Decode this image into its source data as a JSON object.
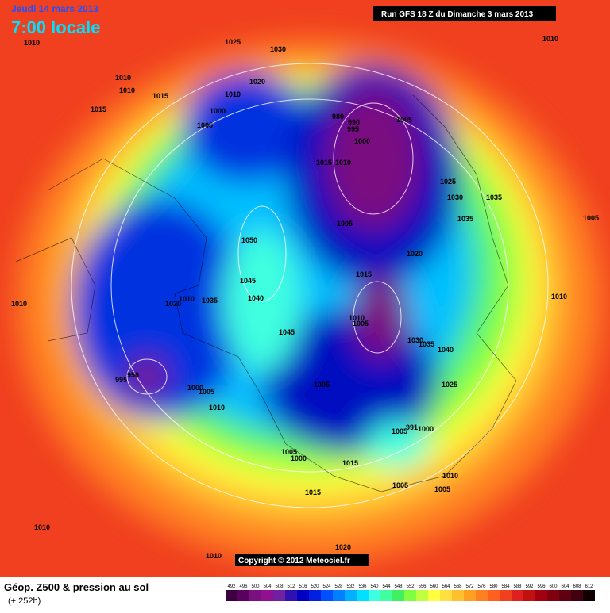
{
  "header": {
    "date": "Jeudi 14 mars 2013",
    "time": "7:00 locale",
    "run": "Run GFS 18 Z du Dimanche 3 mars 2013"
  },
  "copyright": "Copyright © 2012 Meteociel.fr",
  "footer": {
    "title": "Géop. Z500 & pression au sol",
    "lead": "(+ 252h)"
  },
  "isobar_labels": [
    "1010",
    "1025",
    "1030",
    "1010",
    "1010",
    "1010",
    "1015",
    "1020",
    "1010",
    "1015",
    "1000",
    "1005",
    "980",
    "990",
    "995",
    "1005",
    "1000",
    "1015",
    "1010",
    "1025",
    "1035",
    "1030",
    "1005",
    "1035",
    "1005",
    "1050",
    "1020",
    "1015",
    "1045",
    "1040",
    "1010",
    "1010",
    "1010",
    "1035",
    "1020",
    "1010",
    "1005",
    "1045",
    "1030",
    "1035",
    "1040",
    "950",
    "995",
    "1005",
    "1025",
    "1000",
    "1005",
    "1010",
    "1005",
    "991",
    "1000",
    "1005",
    "1000",
    "1015",
    "1010",
    "1005",
    "1005",
    "1015",
    "1010",
    "1020",
    "1010"
  ],
  "scale": {
    "labels": [
      492,
      496,
      500,
      504,
      508,
      512,
      516,
      520,
      524,
      528,
      532,
      536,
      540,
      544,
      548,
      552,
      556,
      560,
      564,
      568,
      572,
      576,
      580,
      584,
      588,
      592,
      596,
      600,
      604,
      608,
      612
    ],
    "colors": [
      "#3a0040",
      "#5a0060",
      "#7a1080",
      "#901090",
      "#7020a0",
      "#3010b0",
      "#0000c0",
      "#0020e0",
      "#0050ff",
      "#0080ff",
      "#00b0ff",
      "#00e0ff",
      "#40ffe0",
      "#40ffa0",
      "#40f060",
      "#80ff40",
      "#c0ff40",
      "#ffff40",
      "#ffe040",
      "#ffc030",
      "#ffa020",
      "#ff8020",
      "#ff6020",
      "#f04020",
      "#e02020",
      "#c01010",
      "#a00010",
      "#800010",
      "#600010",
      "#400010",
      "#100000"
    ]
  }
}
